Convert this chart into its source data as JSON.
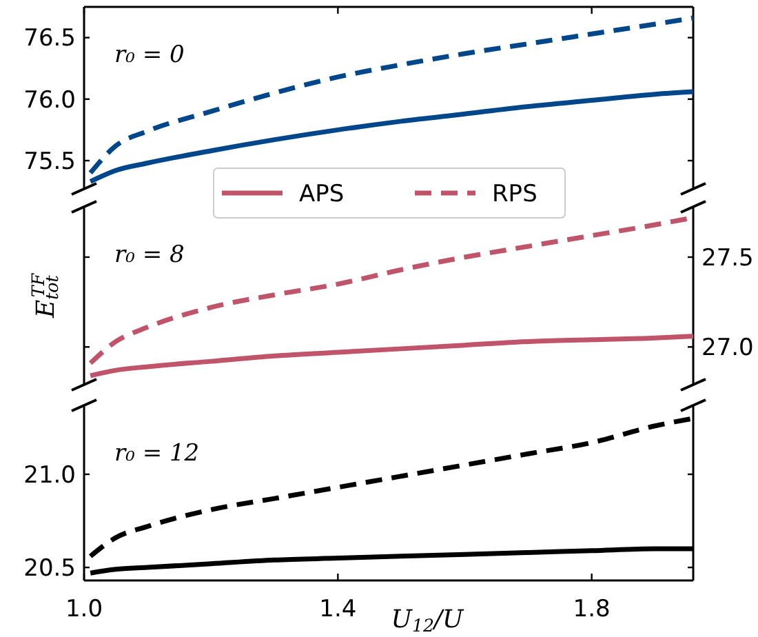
{
  "chart_data": [
    {
      "type": "line",
      "xlim": [
        1.0,
        1.96
      ],
      "xticks": [
        1.0,
        1.4,
        1.8
      ],
      "ylim": [
        75.27,
        76.75
      ],
      "yticks": [
        75.5,
        {
          "value": 76.0,
          "label": "76.0"
        },
        76.5
      ],
      "tick_labels": "y",
      "annotations": [
        "r₀ = 0"
      ],
      "series": [
        {
          "color": "#00468b",
          "line_style": "solid",
          "x": [
            1.01,
            1.05,
            1.1,
            1.2,
            1.3,
            1.4,
            1.5,
            1.6,
            1.7,
            1.8,
            1.9,
            1.96
          ],
          "values": [
            75.33,
            75.42,
            75.48,
            75.58,
            75.67,
            75.75,
            75.82,
            75.88,
            75.94,
            75.99,
            76.04,
            76.06
          ]
        },
        {
          "color": "#00468b",
          "line_style": "dashed",
          "x": [
            1.01,
            1.05,
            1.1,
            1.2,
            1.3,
            1.4,
            1.5,
            1.6,
            1.7,
            1.8,
            1.9,
            1.96
          ],
          "values": [
            75.4,
            75.62,
            75.74,
            75.9,
            76.05,
            76.18,
            76.28,
            76.37,
            76.45,
            76.53,
            76.61,
            76.66
          ]
        }
      ]
    },
    {
      "type": "line",
      "xlim": [
        1.0,
        1.96
      ],
      "ylim": [
        26.79,
        27.78
      ],
      "yticks": [
        {
          "value": 27.0,
          "label": "27.0"
        },
        27.5
      ],
      "tick_labels": "y",
      "ylabel": "E$_{tot}$$^{TF}$",
      "legend": "top",
      "annotations": [
        "r₀ = 8"
      ],
      "series": [
        {
          "name": "APS",
          "color": "#c0546a",
          "line_style": "solid",
          "x": [
            1.01,
            1.05,
            1.1,
            1.2,
            1.3,
            1.4,
            1.5,
            1.6,
            1.7,
            1.8,
            1.9,
            1.96
          ],
          "values": [
            26.84,
            26.87,
            26.89,
            26.92,
            26.95,
            26.97,
            26.99,
            27.01,
            27.03,
            27.04,
            27.05,
            27.06
          ]
        },
        {
          "name": "RPS",
          "color": "#c0546a",
          "line_style": "dashed",
          "x": [
            1.01,
            1.05,
            1.1,
            1.2,
            1.3,
            1.4,
            1.5,
            1.6,
            1.7,
            1.8,
            1.9,
            1.96
          ],
          "values": [
            26.91,
            27.03,
            27.11,
            27.22,
            27.29,
            27.35,
            27.43,
            27.5,
            27.56,
            27.62,
            27.68,
            27.72
          ]
        }
      ]
    },
    {
      "type": "line",
      "xlim": [
        1.0,
        1.96
      ],
      "xticks": [
        {
          "value": 1.0,
          "label": "1.0"
        },
        1.4,
        1.8
      ],
      "ylim": [
        20.43,
        21.37
      ],
      "yticks": [
        20.5,
        {
          "value": 21.0,
          "label": "21.0"
        }
      ],
      "xlabel": "U$_{12}$/U",
      "annotations": [
        "r₀ = 12"
      ],
      "series": [
        {
          "color": "#000000",
          "line_style": "solid",
          "x": [
            1.01,
            1.05,
            1.1,
            1.2,
            1.3,
            1.4,
            1.5,
            1.6,
            1.7,
            1.8,
            1.9,
            1.96
          ],
          "values": [
            20.47,
            20.49,
            20.5,
            20.52,
            20.54,
            20.55,
            20.56,
            20.57,
            20.58,
            20.59,
            20.6,
            20.6
          ]
        },
        {
          "color": "#000000",
          "line_style": "dashed",
          "x": [
            1.01,
            1.05,
            1.1,
            1.2,
            1.3,
            1.4,
            1.5,
            1.6,
            1.7,
            1.8,
            1.9,
            1.96
          ],
          "values": [
            20.56,
            20.66,
            20.72,
            20.81,
            20.87,
            20.93,
            20.99,
            21.05,
            21.11,
            21.17,
            21.26,
            21.3
          ]
        }
      ]
    }
  ]
}
